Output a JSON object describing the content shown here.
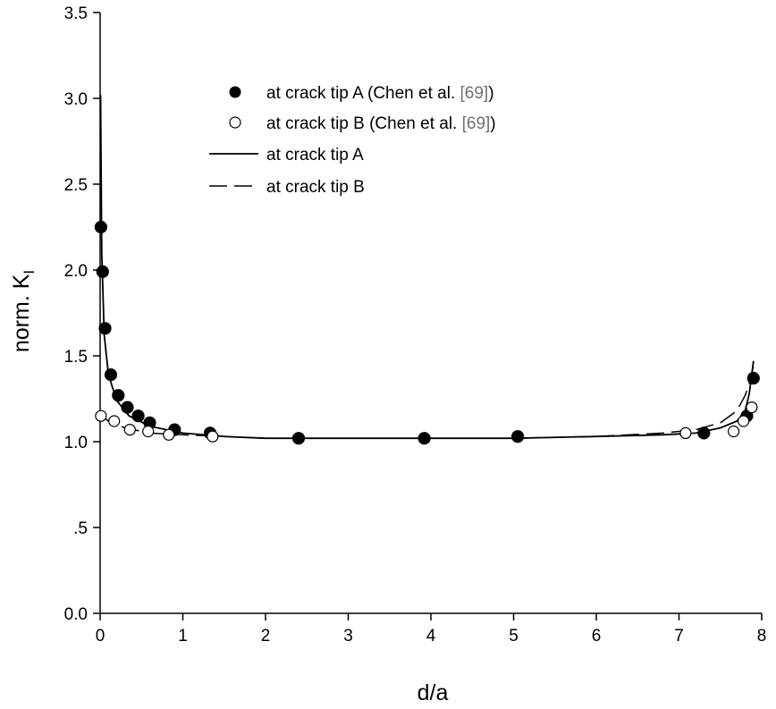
{
  "chart_data": {
    "type": "scatter",
    "xlabel": "d/a",
    "ylabel_main": "norm. K",
    "ylabel_sub": "I",
    "xlim": [
      0,
      8
    ],
    "ylim": [
      0,
      3.5
    ],
    "x_ticks": [
      0,
      1,
      2,
      3,
      4,
      5,
      6,
      7,
      8
    ],
    "x_tick_labels": [
      "0",
      "1",
      "2",
      "3",
      "4",
      "5",
      "6",
      "7",
      "8"
    ],
    "y_ticks": [
      0,
      0.5,
      1,
      1.5,
      2,
      2.5,
      3,
      3.5
    ],
    "y_tick_labels": [
      "0.0",
      ".5",
      "1.0",
      "1.5",
      "2.0",
      "2.5",
      "3.0",
      "3.5"
    ],
    "grid": false,
    "legend_position": "top-center",
    "legend": [
      {
        "marker": "filled-circle",
        "text": "at crack tip A (Chen et al. ",
        "ref": "[69]",
        "tail": ")"
      },
      {
        "marker": "open-circle",
        "text": "at crack tip B (Chen et al. ",
        "ref": "[69]",
        "tail": ")"
      },
      {
        "marker": "solid-line",
        "text": "at crack tip A"
      },
      {
        "marker": "dashed-line",
        "text": "at crack tip B"
      }
    ],
    "series": [
      {
        "marker": "filled-circle",
        "x": [
          0.01,
          0.03,
          0.06,
          0.13,
          0.22,
          0.33,
          0.46,
          0.6,
          0.9,
          1.33,
          2.4,
          3.92,
          5.05,
          7.3,
          7.82,
          7.9
        ],
        "y": [
          2.25,
          1.99,
          1.66,
          1.39,
          1.27,
          1.2,
          1.15,
          1.11,
          1.07,
          1.05,
          1.02,
          1.02,
          1.03,
          1.05,
          1.15,
          1.37
        ]
      },
      {
        "marker": "open-circle",
        "x": [
          0.01,
          0.17,
          0.36,
          0.58,
          0.83,
          1.36,
          7.08,
          7.66,
          7.78,
          7.88
        ],
        "y": [
          1.15,
          1.12,
          1.07,
          1.06,
          1.04,
          1.03,
          1.05,
          1.06,
          1.12,
          1.2
        ]
      },
      {
        "line": "solid",
        "x": [
          0.005,
          0.02,
          0.05,
          0.1,
          0.2,
          0.35,
          0.6,
          1.0,
          1.5,
          2.0,
          3.0,
          4.0,
          5.0,
          6.0,
          6.8,
          7.2,
          7.5,
          7.7,
          7.8,
          7.85,
          7.9
        ],
        "y": [
          3.02,
          2.1,
          1.62,
          1.39,
          1.24,
          1.15,
          1.09,
          1.05,
          1.03,
          1.02,
          1.02,
          1.02,
          1.02,
          1.03,
          1.04,
          1.05,
          1.08,
          1.12,
          1.18,
          1.28,
          1.47
        ]
      },
      {
        "line": "dashed",
        "x": [
          0.0,
          0.1,
          0.3,
          0.6,
          1.0,
          1.5,
          2.0,
          3.0,
          4.0,
          5.0,
          6.0,
          6.8,
          7.2,
          7.5,
          7.7,
          7.8,
          7.85,
          7.9
        ],
        "y": [
          1.16,
          1.12,
          1.08,
          1.05,
          1.04,
          1.03,
          1.02,
          1.02,
          1.02,
          1.02,
          1.03,
          1.05,
          1.07,
          1.11,
          1.18,
          1.27,
          1.34,
          1.44
        ]
      }
    ]
  }
}
